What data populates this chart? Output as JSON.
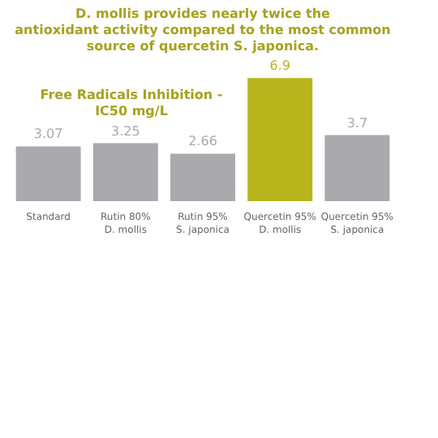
{
  "chart_data": {
    "type": "bar",
    "title": "D. mollis provides nearly twice the\nantioxidant activity compared to the most common\nsource of quercetin S. japonica.",
    "annotations": [
      "Free Radicals Inhibition -\nIC50 mg/L"
    ],
    "categories": [
      "Standard",
      "Rutin 80%\nD. mollis",
      "Rutin 95%\nS. japonica",
      "Quercetin 95%\nD. mollis",
      "Quercetin 95%\nS. japonica"
    ],
    "values": [
      3.07,
      3.25,
      2.66,
      6.9,
      3.7
    ],
    "colors": [
      "#aaaaae",
      "#aaaaae",
      "#aaaaae",
      "#b8b41c",
      "#aaaaae"
    ],
    "data_labels": true
  }
}
